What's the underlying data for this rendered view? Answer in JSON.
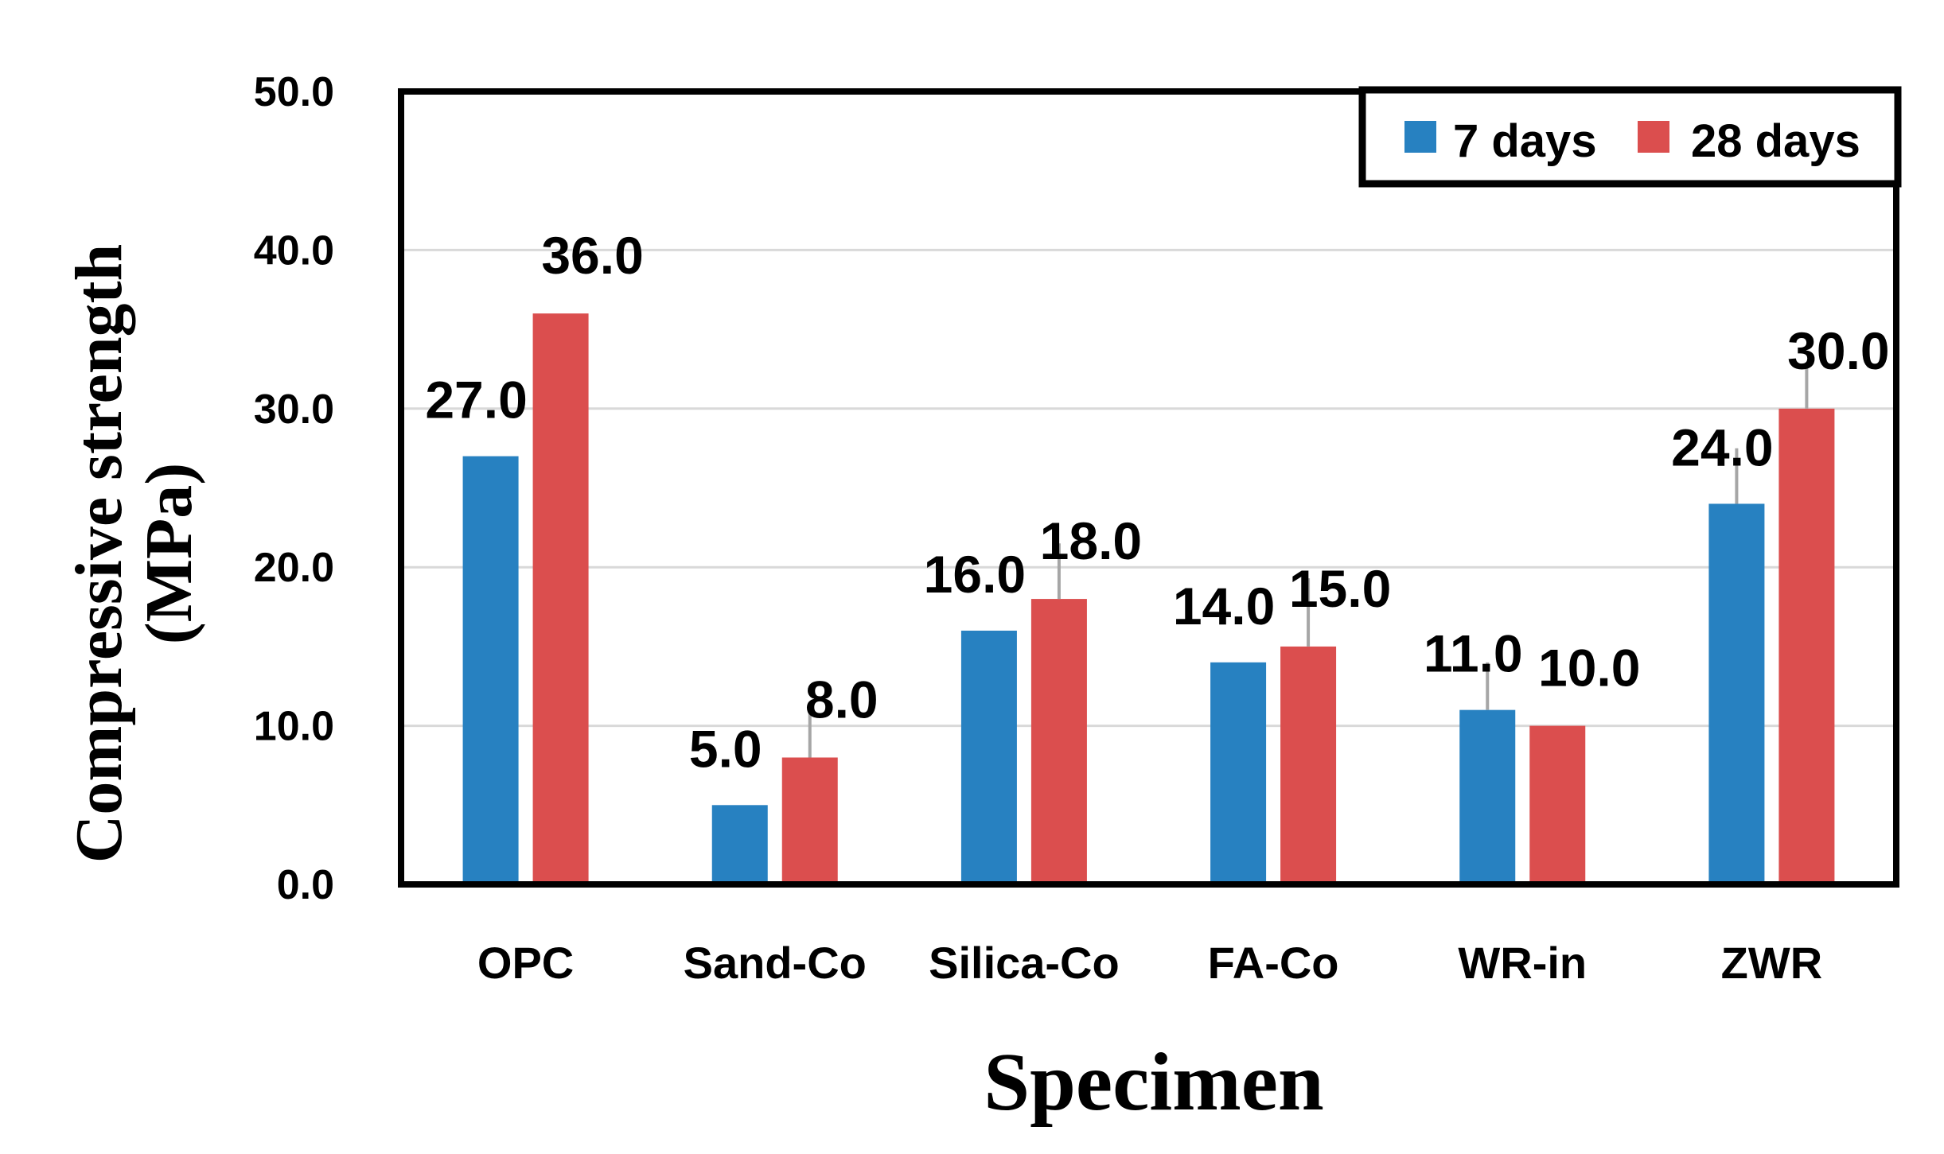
{
  "chart_data": {
    "type": "bar",
    "title": "",
    "xlabel": "Specimen",
    "ylabel_line1": "Compressive strength",
    "ylabel_line2": "(MPa)",
    "categories": [
      "OPC",
      "Sand-Co",
      "Silica-Co",
      "FA-Co",
      "WR-in",
      "ZWR"
    ],
    "series": [
      {
        "name": "7 days",
        "color": "#2781C1",
        "values": [
          27.0,
          5.0,
          16.0,
          14.0,
          11.0,
          24.0
        ],
        "labels": [
          "27.0",
          "5.0",
          "16.0",
          "14.0",
          "11.0",
          "24.0"
        ],
        "errors": [
          0,
          0,
          0,
          0,
          3.0,
          3.5
        ]
      },
      {
        "name": "28 days",
        "color": "#DB4E4E",
        "values": [
          36.0,
          8.0,
          18.0,
          15.0,
          10.0,
          30.0
        ],
        "labels": [
          "36.0",
          "8.0",
          "18.0",
          "15.0",
          "10.0",
          "30.0"
        ],
        "errors": [
          0,
          3.5,
          3.5,
          4.3,
          0,
          2.8
        ]
      }
    ],
    "ylim": [
      0,
      50
    ],
    "yticks": [
      "0.0",
      "10.0",
      "20.0",
      "30.0",
      "40.0",
      "50.0"
    ],
    "ytick_values": [
      0,
      10,
      20,
      30,
      40,
      50
    ],
    "grid": true,
    "legend_position": "top-right",
    "gridline_color": "#D9D9D9",
    "errorbar_color": "#A6A6A6"
  }
}
